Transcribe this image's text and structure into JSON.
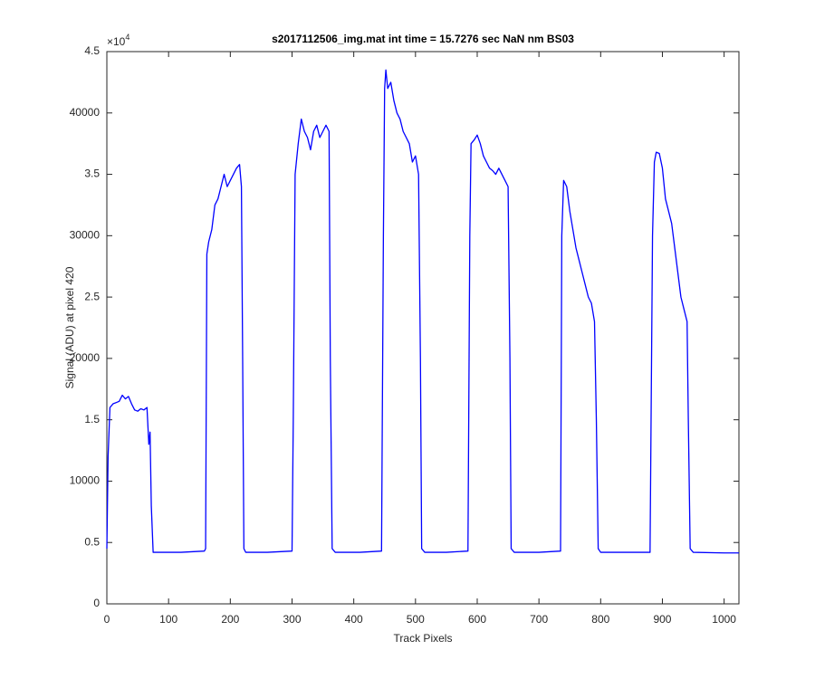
{
  "chart_data": {
    "type": "line",
    "title": "s2017112506_img.mat int time = 15.7276 sec  NaN nm BS03",
    "x_label": "Track Pixels",
    "y_label": "Signal (ADU) at pixel 420",
    "y_multiplier": {
      "base": "×10",
      "exponent": "4"
    },
    "xlim": [
      0,
      1024
    ],
    "ylim": [
      0,
      45000
    ],
    "xticks": [
      0,
      100,
      200,
      300,
      400,
      500,
      600,
      700,
      800,
      900,
      1000
    ],
    "yticks": [
      0,
      {
        "value": 5000,
        "label": "0.5"
      },
      10000,
      {
        "value": 15000,
        "label": "1.5"
      },
      20000,
      {
        "value": 25000,
        "label": "2.5"
      },
      30000,
      {
        "value": 35000,
        "label": "3.5"
      },
      40000,
      {
        "value": 45000,
        "label": "4.5"
      }
    ],
    "grid": false,
    "series": [
      {
        "color": "#0000ff",
        "x": [
          0,
          2,
          5,
          10,
          20,
          25,
          30,
          35,
          40,
          45,
          50,
          55,
          60,
          65,
          68,
          70,
          72,
          75,
          120,
          158,
          160,
          162,
          165,
          170,
          175,
          180,
          185,
          190,
          195,
          200,
          205,
          210,
          215,
          218,
          220,
          222,
          225,
          260,
          300,
          302,
          305,
          310,
          315,
          320,
          325,
          330,
          335,
          340,
          345,
          350,
          355,
          360,
          362,
          365,
          370,
          410,
          445,
          448,
          450,
          452,
          455,
          460,
          465,
          470,
          475,
          480,
          485,
          490,
          495,
          500,
          505,
          508,
          510,
          515,
          550,
          585,
          588,
          590,
          595,
          600,
          605,
          610,
          615,
          620,
          625,
          630,
          635,
          640,
          645,
          650,
          653,
          655,
          660,
          700,
          735,
          737,
          740,
          745,
          750,
          755,
          760,
          765,
          770,
          775,
          780,
          785,
          790,
          793,
          796,
          800,
          840,
          880,
          884,
          887,
          890,
          895,
          900,
          905,
          910,
          915,
          920,
          925,
          930,
          935,
          940,
          942,
          945,
          950,
          1000,
          1024
        ],
        "values": [
          4500,
          12000,
          16000,
          16300,
          16500,
          17000,
          16700,
          16900,
          16300,
          15800,
          15700,
          15900,
          15800,
          16000,
          13000,
          14000,
          8000,
          4200,
          4200,
          4300,
          4500,
          28500,
          29500,
          30500,
          32500,
          33000,
          34000,
          35000,
          34000,
          34500,
          35000,
          35500,
          35800,
          34000,
          20000,
          4500,
          4200,
          4200,
          4300,
          15000,
          35000,
          37500,
          39500,
          38500,
          38000,
          37000,
          38500,
          39000,
          38000,
          38500,
          39000,
          38500,
          20000,
          4500,
          4200,
          4200,
          4300,
          30000,
          42000,
          43500,
          42000,
          42500,
          41000,
          40000,
          39500,
          38500,
          38000,
          37500,
          36000,
          36500,
          35000,
          20000,
          4500,
          4200,
          4200,
          4300,
          30000,
          37500,
          37800,
          38200,
          37500,
          36500,
          36000,
          35500,
          35300,
          35000,
          35500,
          35000,
          34500,
          34000,
          20000,
          4500,
          4200,
          4200,
          4300,
          30000,
          34500,
          34000,
          32000,
          30500,
          29000,
          28000,
          27000,
          26000,
          25000,
          24500,
          23000,
          15000,
          4500,
          4200,
          4200,
          4200,
          30000,
          36000,
          36800,
          36700,
          35500,
          33000,
          32000,
          31000,
          29000,
          27000,
          25000,
          24000,
          23000,
          15000,
          4500,
          4200,
          4150,
          4150
        ]
      }
    ]
  }
}
